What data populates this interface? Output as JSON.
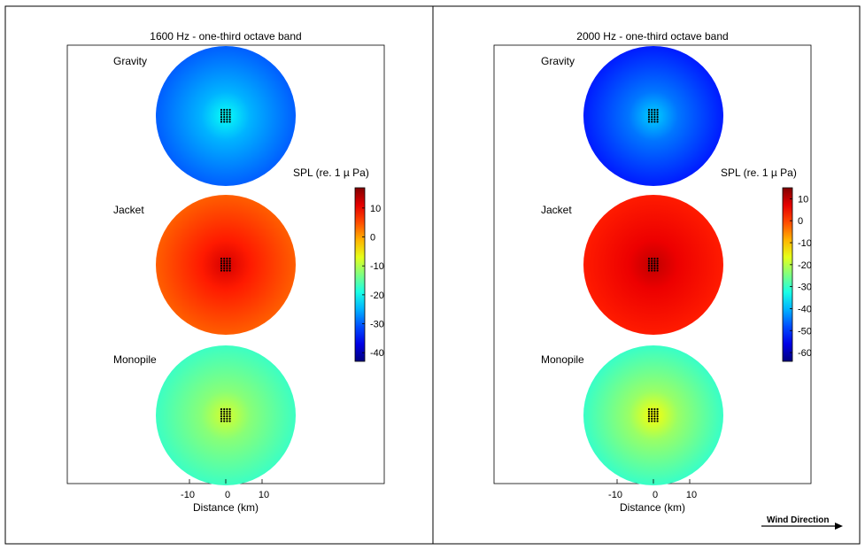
{
  "chart_data": [
    {
      "type": "heatmap",
      "title": "1600 Hz - one-third octave band",
      "xlabel": "Distance (km)",
      "x_ticks": [
        "-10",
        "0",
        "10"
      ],
      "panels": [
        {
          "name": "Gravity",
          "base_level_db": -30,
          "center_level_db": -20
        },
        {
          "name": "Jacket",
          "base_level_db": 4,
          "center_level_db": 12
        },
        {
          "name": "Monopile",
          "base_level_db": -17,
          "center_level_db": -8
        }
      ],
      "colorbar": {
        "label": "SPL (re. 1 µ Pa)",
        "range": [
          -43,
          17
        ],
        "ticks": [
          "10",
          "0",
          "-10",
          "-20",
          "-30",
          "-40"
        ],
        "tick_values": [
          10,
          0,
          -10,
          -20,
          -30,
          -40
        ]
      }
    },
    {
      "type": "heatmap",
      "title": "2000 Hz - one-third octave band",
      "xlabel": "Distance (km)",
      "x_ticks": [
        "-10",
        "0",
        "10"
      ],
      "panels": [
        {
          "name": "Gravity",
          "base_level_db": -52,
          "center_level_db": -38
        },
        {
          "name": "Jacket",
          "base_level_db": 3,
          "center_level_db": 10
        },
        {
          "name": "Monopile",
          "base_level_db": -30,
          "center_level_db": -15
        }
      ],
      "colorbar": {
        "label": "SPL (re. 1 µ Pa)",
        "range": [
          -64,
          15
        ],
        "ticks": [
          "10",
          "0",
          "-10",
          "-20",
          "-30",
          "-40",
          "-50",
          "-60"
        ],
        "tick_values": [
          10,
          0,
          -10,
          -20,
          -30,
          -40,
          -50,
          -60
        ]
      }
    }
  ],
  "wind_label": "Wind Direction",
  "colors": {
    "frame": "#000000",
    "axes_bg": "#ffffff",
    "marker": "#000000"
  }
}
